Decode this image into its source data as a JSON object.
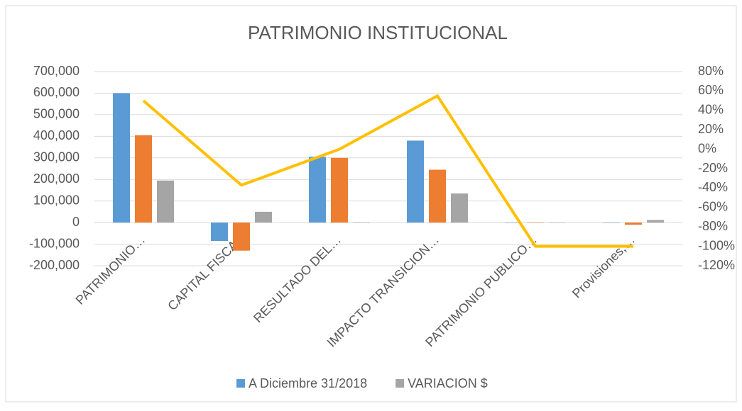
{
  "chart_data": {
    "type": "bar",
    "title": "PATRIMONIO INSTITUCIONAL",
    "categories": [
      "PATRIMONIO…",
      "CAPITAL FISCAL",
      "RESULTADO DEL…",
      "IMPACTO TRANSICION…",
      "PATRIMONIO PUBLICO…",
      "Provisiones,…"
    ],
    "series": [
      {
        "name": "A Diciembre 31/2018",
        "color": "#5b9bd5",
        "values": [
          600000,
          -85000,
          305000,
          380000,
          0,
          0
        ]
      },
      {
        "color": "#ed7d31",
        "values": [
          405000,
          -130000,
          300000,
          245000,
          0,
          -10000
        ]
      },
      {
        "name": "VARIACION  $",
        "color": "#a5a5a5",
        "values": [
          195000,
          50000,
          2000,
          135000,
          0,
          12000
        ]
      },
      {
        "type": "line",
        "axis": "y2",
        "color": "#ffc000",
        "values": [
          50,
          -37,
          0,
          55,
          -100,
          -100
        ]
      }
    ],
    "ylim": [
      -200000,
      700000
    ],
    "yticks": [
      {
        "value": -200000,
        "label": "-200,000"
      },
      {
        "value": -100000,
        "label": "-100,000"
      },
      0,
      {
        "value": 100000,
        "label": "100,000"
      },
      {
        "value": 200000,
        "label": "200,000"
      },
      {
        "value": 300000,
        "label": "300,000"
      },
      {
        "value": 400000,
        "label": "400,000"
      },
      {
        "value": 500000,
        "label": "500,000"
      },
      {
        "value": 600000,
        "label": "600,000"
      },
      {
        "value": 700000,
        "label": "700,000"
      }
    ],
    "y2lim": [
      -120,
      80
    ],
    "y2ticks": [
      {
        "value": -120,
        "label": "-120%"
      },
      {
        "value": -100,
        "label": "-100%"
      },
      {
        "value": -80,
        "label": "-80%"
      },
      {
        "value": -60,
        "label": "-60%"
      },
      {
        "value": -40,
        "label": "-40%"
      },
      {
        "value": -20,
        "label": "-20%"
      },
      {
        "value": 0,
        "label": "0%"
      },
      {
        "value": 20,
        "label": "20%"
      },
      {
        "value": 40,
        "label": "40%"
      },
      {
        "value": 60,
        "label": "60%"
      },
      {
        "value": 80,
        "label": "80%"
      }
    ],
    "grid": true,
    "legend": "bottom"
  }
}
